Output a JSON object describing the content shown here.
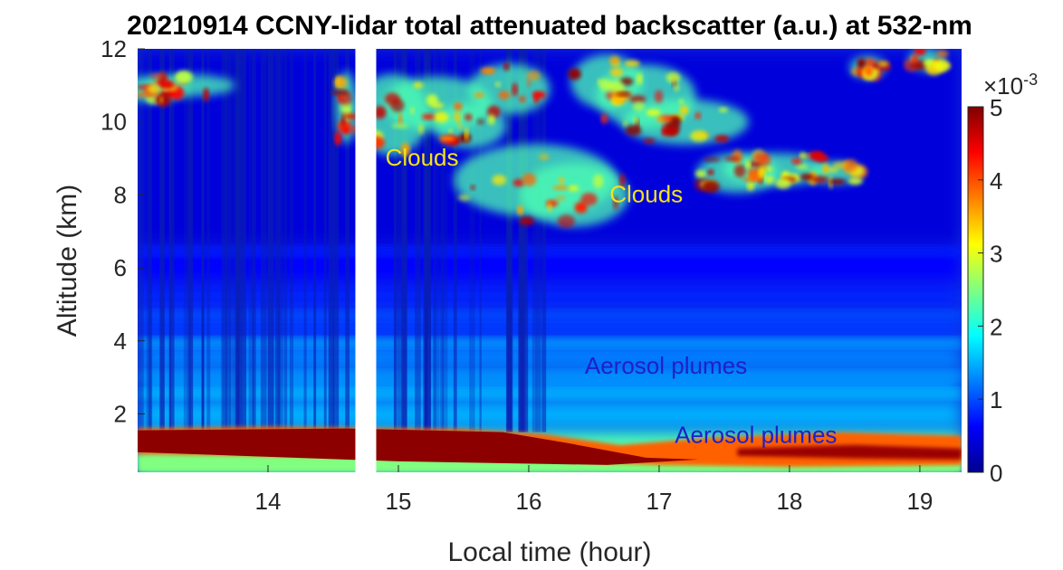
{
  "chart_data": {
    "type": "heatmap",
    "title": "20210914 CCNY-lidar total attenuated backscatter (a.u.) at 532-nm",
    "xlabel": "Local time (hour)",
    "ylabel": "Altitude (km)",
    "xlim": [
      13.0,
      19.32
    ],
    "ylim": [
      0.4,
      12
    ],
    "xticks": [
      14,
      15,
      16,
      17,
      18,
      19
    ],
    "yticks": [
      2,
      4,
      6,
      8,
      10,
      12
    ],
    "colorbar": {
      "colormap": "jet",
      "clim": [
        0,
        5
      ],
      "ticks": [
        0,
        1,
        2,
        3,
        4,
        5
      ],
      "exponent_label": "×10",
      "exponent_value": "-3"
    },
    "data_gap": [
      14.67,
      14.83
    ],
    "annotations": [
      {
        "text": "Clouds",
        "x": 14.9,
        "y": 8.8,
        "color": "#f2e31a"
      },
      {
        "text": "Clouds",
        "x": 16.62,
        "y": 7.8,
        "color": "#f2e31a"
      },
      {
        "text": "Aerosol plumes",
        "x": 16.43,
        "y": 3.1,
        "color": "#1f20c8"
      },
      {
        "text": "Aerosol plumes",
        "x": 17.12,
        "y": 1.2,
        "color": "#1f20c8"
      }
    ],
    "features": [
      {
        "label": "Clouds",
        "time_range": [
          14.83,
          18.6
        ],
        "altitude_range": [
          7.3,
          12
        ]
      },
      {
        "label": "Aerosol plumes",
        "time_range": [
          13.0,
          19.32
        ],
        "altitude_range": [
          2.5,
          4.0
        ]
      },
      {
        "label": "Aerosol plumes",
        "time_range": [
          13.0,
          19.32
        ],
        "altitude_range": [
          0.5,
          1.6
        ]
      }
    ]
  }
}
